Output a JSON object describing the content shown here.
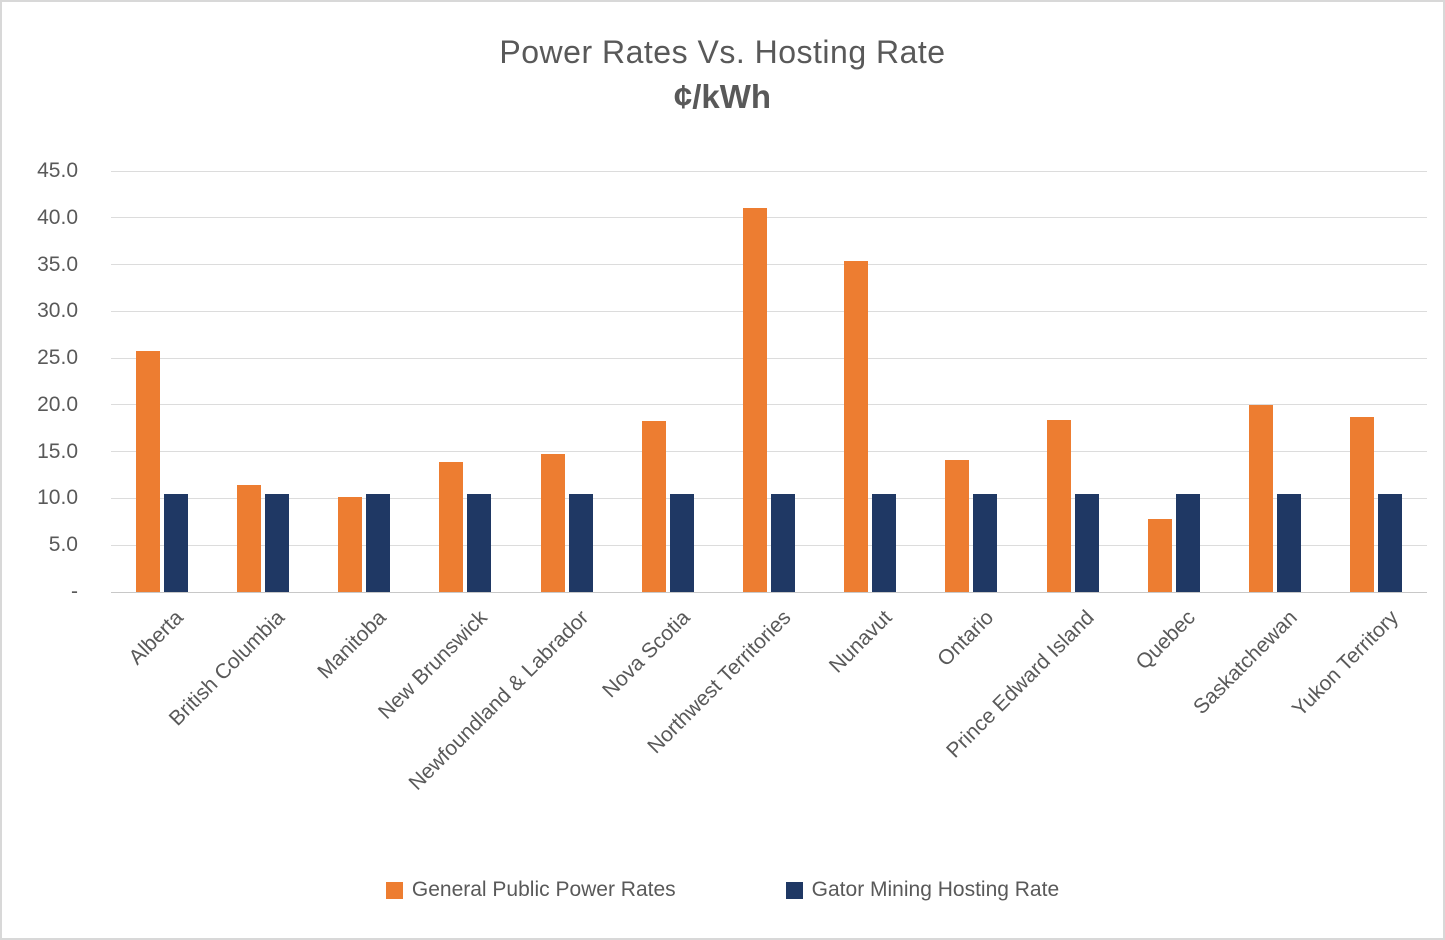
{
  "window": {
    "background_color": "#ffffff",
    "border_color": "#d8d8d8"
  },
  "chart_data": {
    "type": "bar",
    "title": "Power Rates Vs. Hosting Rate",
    "subtitle": "¢/kWh",
    "unit": "¢/kWh",
    "categories": [
      "Alberta",
      "British Columbia",
      "Manitoba",
      "New Brunswick",
      "Newfoundland & Labrador",
      "Nova Scotia",
      "Northwest Territories",
      "Nunavut",
      "Ontario",
      "Prince Edward Island",
      "Quebec",
      "Saskatchewan",
      "Yukon Territory"
    ],
    "series": [
      {
        "name": "General Public Power Rates",
        "color": "#ED7D31",
        "values": [
          25.8,
          11.4,
          10.2,
          13.9,
          14.8,
          18.3,
          41.0,
          35.4,
          14.1,
          18.4,
          7.8,
          20.0,
          18.7
        ]
      },
      {
        "name": "Gator Mining Hosting Rate",
        "color": "#1F3864",
        "values": [
          10.5,
          10.5,
          10.5,
          10.5,
          10.5,
          10.5,
          10.5,
          10.5,
          10.5,
          10.5,
          10.5,
          10.5,
          10.5
        ]
      }
    ],
    "ylim": [
      0,
      45
    ],
    "y_ticks": [
      {
        "value": 45,
        "label": "45.0"
      },
      {
        "value": 40,
        "label": "40.0"
      },
      {
        "value": 35,
        "label": "35.0"
      },
      {
        "value": 30,
        "label": "30.0"
      },
      {
        "value": 25,
        "label": "25.0"
      },
      {
        "value": 20,
        "label": "20.0"
      },
      {
        "value": 15,
        "label": "15.0"
      },
      {
        "value": 10,
        "label": "10.0"
      },
      {
        "value": 5,
        "label": "5.0"
      },
      {
        "value": 0,
        "label": "-"
      }
    ],
    "grid": true,
    "legend_position": "bottom",
    "text_color": "#595959",
    "gridline_color": "#dcdcdc"
  }
}
